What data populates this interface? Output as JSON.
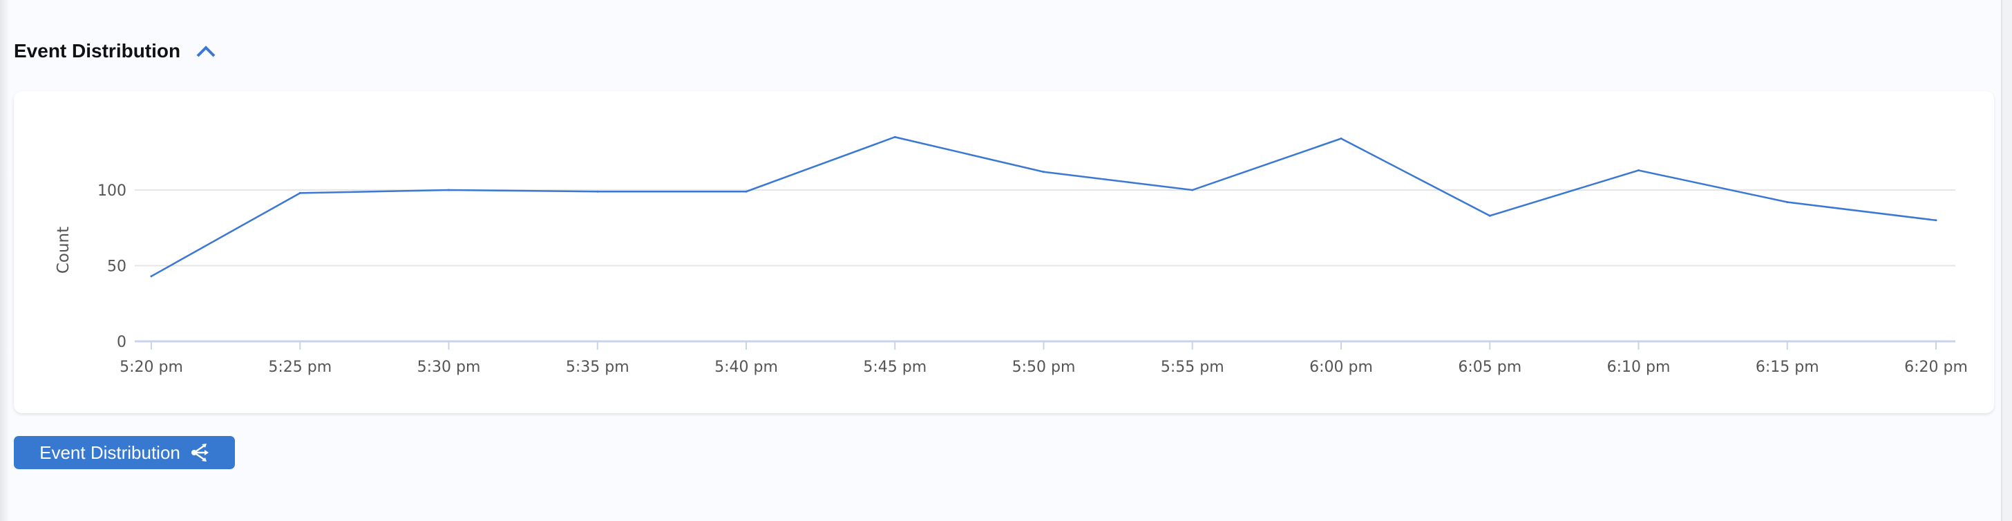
{
  "section": {
    "title": "Event Distribution",
    "toggle_icon": "chevron-up-icon"
  },
  "button": {
    "label": "Event Distribution",
    "icon": "share-branch-icon",
    "color": "#3778d0"
  },
  "chart_data": {
    "type": "line",
    "title": "",
    "xlabel": "",
    "ylabel": "Count",
    "categories": [
      "5:20 pm",
      "5:25 pm",
      "5:30 pm",
      "5:35 pm",
      "5:40 pm",
      "5:45 pm",
      "5:50 pm",
      "5:55 pm",
      "6:00 pm",
      "6:05 pm",
      "6:10 pm",
      "6:15 pm",
      "6:20 pm"
    ],
    "values": [
      43,
      98,
      100,
      99,
      99,
      135,
      112,
      100,
      134,
      83,
      113,
      92,
      80
    ],
    "yticks": [
      0,
      50,
      100
    ],
    "ylim": [
      0,
      150
    ],
    "grid": true,
    "line_color": "#3a78d4"
  }
}
